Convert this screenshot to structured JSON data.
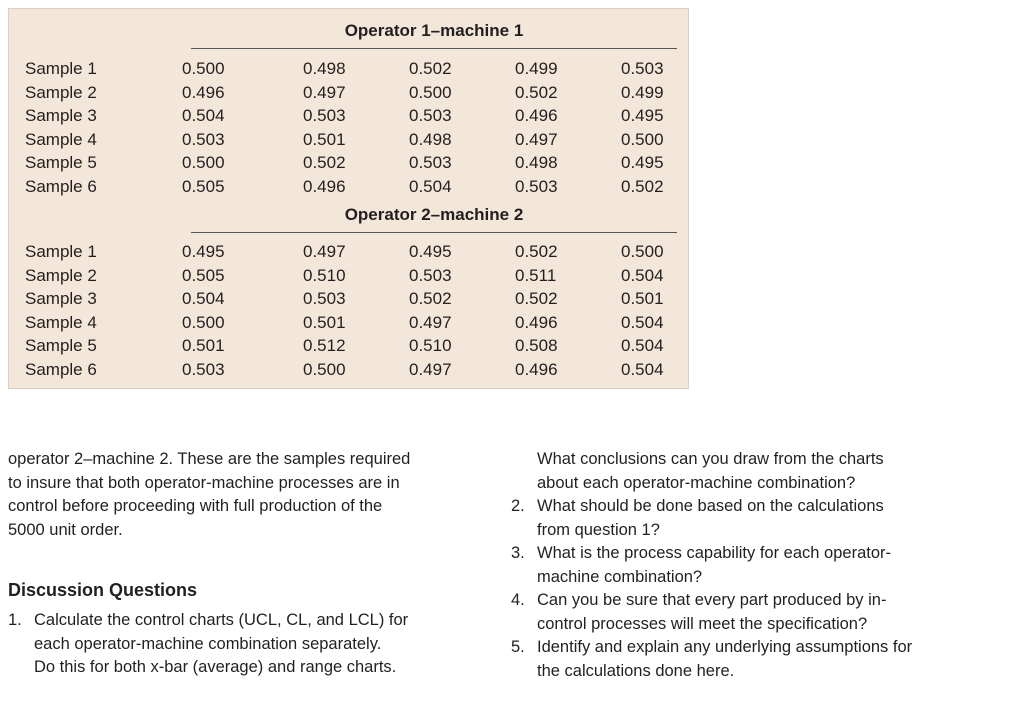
{
  "table": {
    "sections": [
      {
        "title": "Operator 1–machine 1",
        "rows": [
          {
            "label": "Sample 1",
            "values": [
              "0.500",
              "0.498",
              "0.502",
              "0.499",
              "0.503"
            ]
          },
          {
            "label": "Sample 2",
            "values": [
              "0.496",
              "0.497",
              "0.500",
              "0.502",
              "0.499"
            ]
          },
          {
            "label": "Sample 3",
            "values": [
              "0.504",
              "0.503",
              "0.503",
              "0.496",
              "0.495"
            ]
          },
          {
            "label": "Sample 4",
            "values": [
              "0.503",
              "0.501",
              "0.498",
              "0.497",
              "0.500"
            ]
          },
          {
            "label": "Sample 5",
            "values": [
              "0.500",
              "0.502",
              "0.503",
              "0.498",
              "0.495"
            ]
          },
          {
            "label": "Sample 6",
            "values": [
              "0.505",
              "0.496",
              "0.504",
              "0.503",
              "0.502"
            ]
          }
        ]
      },
      {
        "title": "Operator 2–machine 2",
        "rows": [
          {
            "label": "Sample 1",
            "values": [
              "0.495",
              "0.497",
              "0.495",
              "0.502",
              "0.500"
            ]
          },
          {
            "label": "Sample 2",
            "values": [
              "0.505",
              "0.510",
              "0.503",
              "0.511",
              "0.504"
            ]
          },
          {
            "label": "Sample 3",
            "values": [
              "0.504",
              "0.503",
              "0.502",
              "0.502",
              "0.501"
            ]
          },
          {
            "label": "Sample 4",
            "values": [
              "0.500",
              "0.501",
              "0.497",
              "0.496",
              "0.504"
            ]
          },
          {
            "label": "Sample 5",
            "values": [
              "0.501",
              "0.512",
              "0.510",
              "0.508",
              "0.504"
            ]
          },
          {
            "label": "Sample 6",
            "values": [
              "0.503",
              "0.500",
              "0.497",
              "0.496",
              "0.504"
            ]
          }
        ]
      }
    ]
  },
  "body": {
    "paragraph_lines": [
      "operator 2–machine 2. These are the samples required",
      "to insure that both operator-machine processes are in",
      "control before proceeding with full production of the",
      "5000 unit order."
    ]
  },
  "discussion": {
    "heading": "Discussion Questions",
    "q1": {
      "number": "1.",
      "lines": [
        "Calculate the control charts (UCL, CL, and LCL) for",
        "each operator-machine combination separately.",
        "Do this for both x-bar (average) and range charts."
      ]
    },
    "q1_continued_lines": [
      "What conclusions can you draw from the charts",
      "about each operator-machine combination?"
    ],
    "questions": [
      {
        "number": "2.",
        "lines": [
          "What should be done based on the calculations",
          "from question 1?"
        ]
      },
      {
        "number": "3.",
        "lines": [
          "What is the process capability for each operator-",
          "machine combination?"
        ]
      },
      {
        "number": "4.",
        "lines": [
          "Can you be sure that every part produced by in-",
          "control processes will meet the specification?"
        ]
      },
      {
        "number": "5.",
        "lines": [
          "Identify and explain any underlying assumptions for",
          "the calculations done here."
        ]
      }
    ]
  }
}
